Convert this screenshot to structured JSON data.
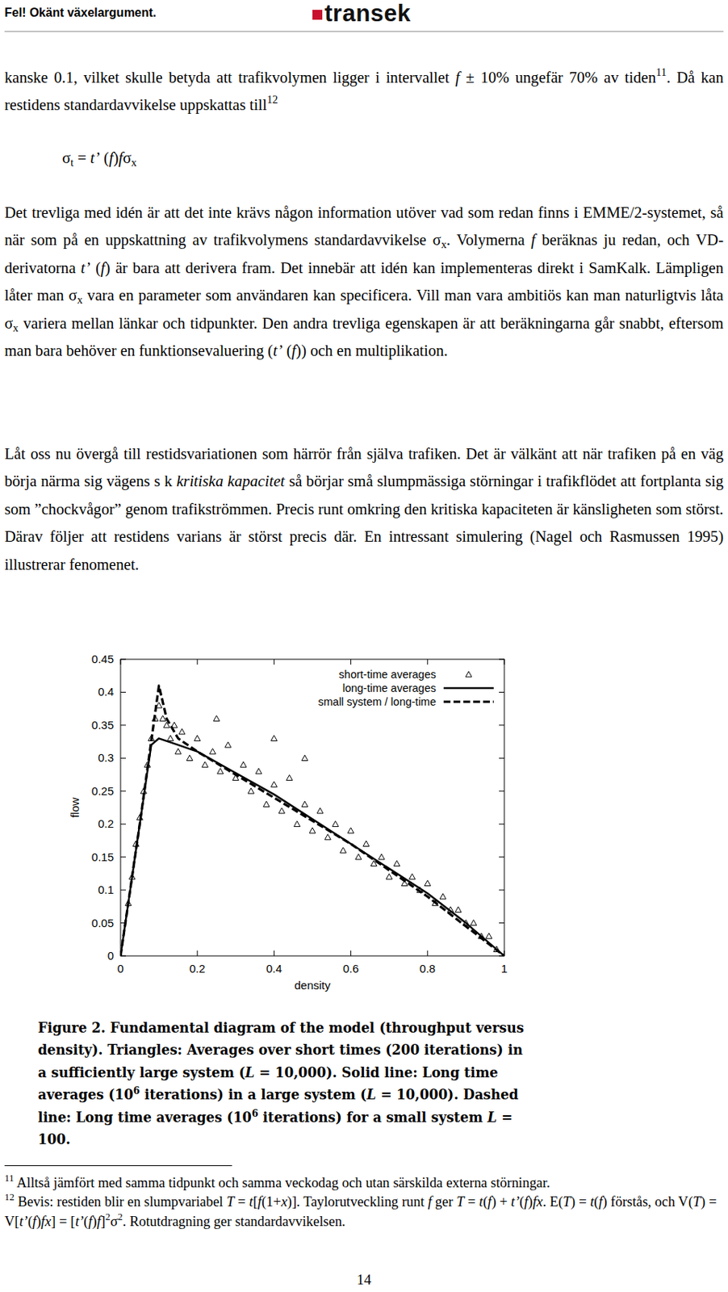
{
  "header": {
    "left": "Fel! Okänt växelargument.",
    "logo": "transek"
  },
  "paragraphs": [
    {
      "runs": [
        {
          "text": "kanske 0.1, vilket skulle betyda att trafikvolymen ligger i intervallet "
        },
        {
          "text": "f",
          "style": "italic"
        },
        {
          "text": " ± 10% ungefär 70% av tiden"
        },
        {
          "text": "11",
          "style": "sup"
        },
        {
          "text": ". Då kan restidens standardavvikelse uppskattas till"
        },
        {
          "text": "12",
          "style": "sup"
        }
      ]
    },
    {
      "runs": [
        {
          "text": "σ"
        },
        {
          "text": "t",
          "style": "sub"
        },
        {
          "text": " = "
        },
        {
          "text": "t’",
          "style": "italic"
        },
        {
          "text": " ("
        },
        {
          "text": "f",
          "style": "italic"
        },
        {
          "text": ")"
        },
        {
          "text": "f",
          "style": "italic"
        },
        {
          "text": "σ"
        },
        {
          "text": "x",
          "style": "sub"
        }
      ]
    },
    {
      "runs": [
        {
          "text": "Det trevliga med idén är att det inte krävs någon information utöver vad som redan finns i EMME/2-systemet, så när som på en uppskattning av trafikvolymens standardavvikelse σ"
        },
        {
          "text": "x",
          "style": "sub"
        },
        {
          "text": ". Volymerna "
        },
        {
          "text": "f",
          "style": "italic"
        },
        {
          "text": " beräknas ju redan, och VD-derivatorna "
        },
        {
          "text": "t’",
          "style": "italic"
        },
        {
          "text": " ("
        },
        {
          "text": "f",
          "style": "italic"
        },
        {
          "text": ") är bara att derivera fram. Det innebär att idén kan implementeras direkt i SamKalk. Lämpligen låter man σ"
        },
        {
          "text": "x",
          "style": "sub"
        },
        {
          "text": " vara en parameter som användaren kan specificera. Vill man vara ambitiös kan man naturligtvis låta σ"
        },
        {
          "text": "x",
          "style": "sub"
        },
        {
          "text": " variera mellan länkar och tidpunkter. Den andra trevliga egenskapen är att beräkningarna går snabbt, eftersom man bara behöver en funktionsevaluering ("
        },
        {
          "text": "t’",
          "style": "italic"
        },
        {
          "text": " ("
        },
        {
          "text": "f",
          "style": "italic"
        },
        {
          "text": ")) och en multiplikation."
        }
      ]
    },
    {
      "runs": [
        {
          "text": "Låt oss nu övergå till restidsvariationen som härrör från själva trafiken. Det är välkänt att när trafiken på en väg börja närma sig vägens s k "
        },
        {
          "text": "kritiska kapacitet",
          "style": "italic"
        },
        {
          "text": " så börjar små slumpmässiga störningar i trafikflödet att fortplanta sig som ”chockvågor” genom trafikströmmen. Precis runt omkring den kritiska kapaciteten är känsligheten som störst. Därav följer att restidens varians är störst precis där. En intressant simulering (Nagel och Rasmussen 1995) illustrerar fenomenet."
        }
      ]
    }
  ],
  "chart_data": {
    "type": "scatter",
    "x_label": "density",
    "y_label": "flow",
    "xlim": [
      0,
      1
    ],
    "ylim": [
      0,
      0.45
    ],
    "xticks": [
      0,
      0.2,
      0.4,
      0.6,
      0.8,
      1
    ],
    "yticks": [
      0,
      0.05,
      0.1,
      0.15,
      0.2,
      0.25,
      0.3,
      0.35,
      0.4,
      0.45
    ],
    "legend": "upper right",
    "grid": false,
    "series": [
      {
        "name": "short-time averages",
        "type": "scatter",
        "marker": "triangle",
        "color": "#000000",
        "x": [
          0.02,
          0.03,
          0.04,
          0.05,
          0.06,
          0.07,
          0.08,
          0.09,
          0.1,
          0.11,
          0.12,
          0.13,
          0.14,
          0.15,
          0.16,
          0.18,
          0.2,
          0.22,
          0.24,
          0.25,
          0.26,
          0.28,
          0.3,
          0.32,
          0.34,
          0.36,
          0.38,
          0.4,
          0.4,
          0.42,
          0.44,
          0.46,
          0.48,
          0.48,
          0.5,
          0.52,
          0.54,
          0.56,
          0.58,
          0.6,
          0.62,
          0.64,
          0.66,
          0.68,
          0.7,
          0.72,
          0.74,
          0.76,
          0.78,
          0.8,
          0.82,
          0.84,
          0.86,
          0.88,
          0.9,
          0.92,
          0.94,
          0.96,
          0.98
        ],
        "values": [
          0.08,
          0.12,
          0.17,
          0.21,
          0.25,
          0.29,
          0.33,
          0.36,
          0.38,
          0.36,
          0.35,
          0.33,
          0.35,
          0.31,
          0.34,
          0.3,
          0.33,
          0.29,
          0.31,
          0.36,
          0.28,
          0.32,
          0.27,
          0.29,
          0.25,
          0.28,
          0.23,
          0.26,
          0.33,
          0.22,
          0.27,
          0.2,
          0.23,
          0.3,
          0.19,
          0.22,
          0.18,
          0.2,
          0.16,
          0.19,
          0.15,
          0.17,
          0.14,
          0.15,
          0.12,
          0.14,
          0.11,
          0.12,
          0.1,
          0.11,
          0.08,
          0.09,
          0.07,
          0.07,
          0.05,
          0.05,
          0.03,
          0.03,
          0.01
        ]
      },
      {
        "name": "long-time averages",
        "type": "line",
        "line_style": "solid",
        "color": "#000000",
        "x": [
          0,
          0.05,
          0.08,
          0.1,
          0.15,
          0.2,
          0.4,
          0.6,
          0.8,
          0.9,
          1
        ],
        "values": [
          0,
          0.2,
          0.32,
          0.33,
          0.32,
          0.31,
          0.245,
          0.17,
          0.095,
          0.05,
          0
        ]
      },
      {
        "name": "small system / long-time",
        "type": "line",
        "line_style": "dashed",
        "color": "#000000",
        "x": [
          0,
          0.05,
          0.1,
          0.12,
          0.15,
          0.2,
          0.4,
          0.6,
          0.8,
          1
        ],
        "values": [
          0,
          0.2,
          0.41,
          0.36,
          0.33,
          0.31,
          0.24,
          0.17,
          0.09,
          0
        ]
      }
    ]
  },
  "caption": {
    "runs": [
      {
        "text": "Figure 2. Fundamental diagram of the model (throughput versus density). Triangles: Averages over short times (200 iterations) in a sufficiently large system ("
      },
      {
        "text": "L",
        "style": "italic"
      },
      {
        "text": " = 10,000). Solid line: Long time averages (10"
      },
      {
        "text": "6",
        "style": "sup"
      },
      {
        "text": " iterations) in a large system ("
      },
      {
        "text": "L",
        "style": "italic"
      },
      {
        "text": " = 10,000). Dashed line: Long time averages (10"
      },
      {
        "text": "6",
        "style": "sup"
      },
      {
        "text": " iterations) for a small system "
      },
      {
        "text": "L",
        "style": "italic"
      },
      {
        "text": " = 100."
      }
    ]
  },
  "footnotes": [
    {
      "runs": [
        {
          "text": "11",
          "style": "sup"
        },
        {
          "text": " Alltså jämfört med samma tidpunkt och samma veckodag och utan särskilda externa störningar."
        }
      ]
    },
    {
      "runs": [
        {
          "text": "12",
          "style": "sup"
        },
        {
          "text": " Bevis: restiden blir en slumpvariabel "
        },
        {
          "text": "T",
          "style": "italic"
        },
        {
          "text": " = "
        },
        {
          "text": "t",
          "style": "italic"
        },
        {
          "text": "["
        },
        {
          "text": "f",
          "style": "italic"
        },
        {
          "text": "(1+"
        },
        {
          "text": "x",
          "style": "italic"
        },
        {
          "text": ")]. Taylorutveckling runt "
        },
        {
          "text": "f",
          "style": "italic"
        },
        {
          "text": " ger "
        },
        {
          "text": "T",
          "style": "italic"
        },
        {
          "text": " = "
        },
        {
          "text": "t",
          "style": "italic"
        },
        {
          "text": "("
        },
        {
          "text": "f",
          "style": "italic"
        },
        {
          "text": ") + "
        },
        {
          "text": "t’",
          "style": "italic"
        },
        {
          "text": "("
        },
        {
          "text": "f",
          "style": "italic"
        },
        {
          "text": ")"
        },
        {
          "text": "fx",
          "style": "italic"
        },
        {
          "text": ". E("
        },
        {
          "text": "T",
          "style": "italic"
        },
        {
          "text": ") = "
        },
        {
          "text": "t",
          "style": "italic"
        },
        {
          "text": "("
        },
        {
          "text": "f",
          "style": "italic"
        },
        {
          "text": ") förstås, och V("
        },
        {
          "text": "T",
          "style": "italic"
        },
        {
          "text": ") = V["
        },
        {
          "text": "t’",
          "style": "italic"
        },
        {
          "text": "("
        },
        {
          "text": "f",
          "style": "italic"
        },
        {
          "text": ")"
        },
        {
          "text": "fx",
          "style": "italic"
        },
        {
          "text": "] = ["
        },
        {
          "text": "t’",
          "style": "italic"
        },
        {
          "text": "("
        },
        {
          "text": "f",
          "style": "italic"
        },
        {
          "text": ")"
        },
        {
          "text": "f",
          "style": "italic"
        },
        {
          "text": "]"
        },
        {
          "text": "2",
          "style": "sup"
        },
        {
          "text": "σ"
        },
        {
          "text": "2",
          "style": "sup"
        },
        {
          "text": ". Rotutdragning ger standardavvikelsen."
        }
      ]
    }
  ],
  "page_number": "14"
}
